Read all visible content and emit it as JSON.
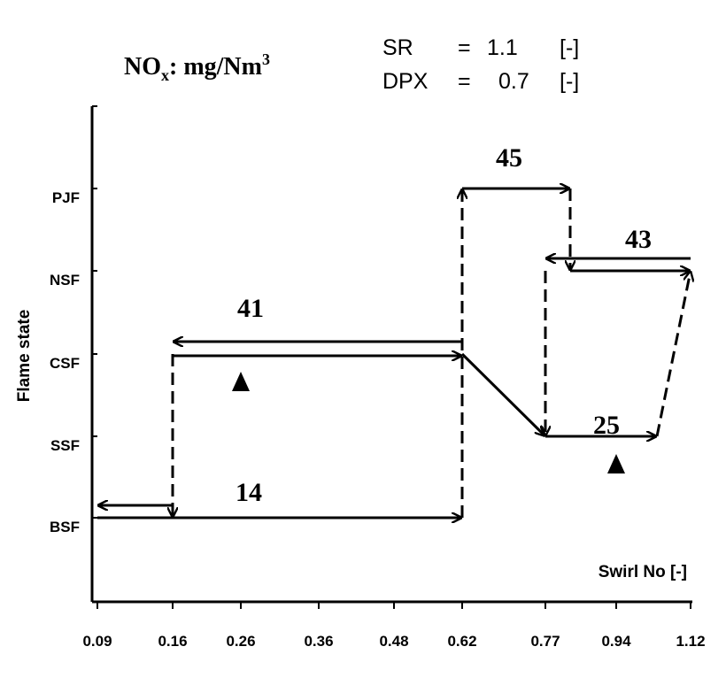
{
  "chart_data": {
    "type": "line",
    "title": {
      "main": "NO",
      "subscript": "x",
      "after_subscript": ": mg/Nm",
      "superscript": "3"
    },
    "parameters": [
      {
        "name": "SR",
        "equals": "=",
        "value": "1.1",
        "unit": "[-]"
      },
      {
        "name": "DPX",
        "equals": "=",
        "value": "0.7",
        "unit": "[-]"
      }
    ],
    "ylabel": "Flame state",
    "xlabel": "Swirl No  [-]",
    "x_ticks": [
      "0.09",
      "0.16",
      "0.26",
      "0.36",
      "0.48",
      "0.62",
      "0.77",
      "0.94",
      "1.12"
    ],
    "y_categories": [
      "BSF",
      "SSF",
      "CSF",
      "NSF",
      "PJF"
    ],
    "grid": false,
    "series": [
      {
        "label": "14",
        "path": [
          [
            "0.09",
            "BSF"
          ],
          [
            "0.62",
            "BSF"
          ]
        ]
      },
      {
        "label": "",
        "path": [
          [
            "0.62",
            "BSF"
          ],
          [
            "0.62",
            "PJF"
          ]
        ]
      },
      {
        "label": "45",
        "path": [
          [
            "0.62",
            "PJF"
          ],
          [
            "0.83",
            "PJF"
          ]
        ]
      },
      {
        "label": "",
        "path": [
          [
            "0.83",
            "PJF"
          ],
          [
            "0.83",
            "NSF"
          ]
        ]
      },
      {
        "label": "43",
        "path": [
          [
            "1.12",
            "NSF"
          ],
          [
            "0.77",
            "NSF"
          ]
        ]
      },
      {
        "label": "",
        "path": [
          [
            "0.77",
            "NSF"
          ],
          [
            "0.77",
            "SSF"
          ]
        ]
      },
      {
        "label": "25",
        "path": [
          [
            "0.77",
            "SSF"
          ],
          [
            "1.03",
            "SSF"
          ]
        ]
      },
      {
        "label": "",
        "path": [
          [
            "1.03",
            "SSF"
          ],
          [
            "1.12",
            "NSF"
          ]
        ]
      },
      {
        "label": "",
        "path": [
          [
            "0.83",
            "NSF"
          ],
          [
            "1.12",
            "NSF"
          ]
        ]
      },
      {
        "label": "41",
        "path": [
          [
            "0.62",
            "CSF"
          ],
          [
            "0.16",
            "CSF"
          ]
        ]
      },
      {
        "label": "",
        "path": [
          [
            "0.16",
            "CSF"
          ],
          [
            "0.16",
            "BSF"
          ]
        ]
      },
      {
        "label": "",
        "path": [
          [
            "0.16",
            "BSF"
          ],
          [
            "0.09",
            "BSF"
          ]
        ]
      },
      {
        "label": "",
        "path": [
          [
            "0.16",
            "CSF"
          ],
          [
            "0.62",
            "CSF"
          ]
        ]
      },
      {
        "label": "",
        "path": [
          [
            "0.62",
            "CSF"
          ],
          [
            "0.77",
            "SSF"
          ]
        ]
      }
    ],
    "markers": [
      {
        "shape": "triangle-up",
        "at": [
          "0.26",
          "CSF"
        ]
      },
      {
        "shape": "triangle-up",
        "at": [
          "0.94",
          "SSF"
        ]
      }
    ]
  }
}
